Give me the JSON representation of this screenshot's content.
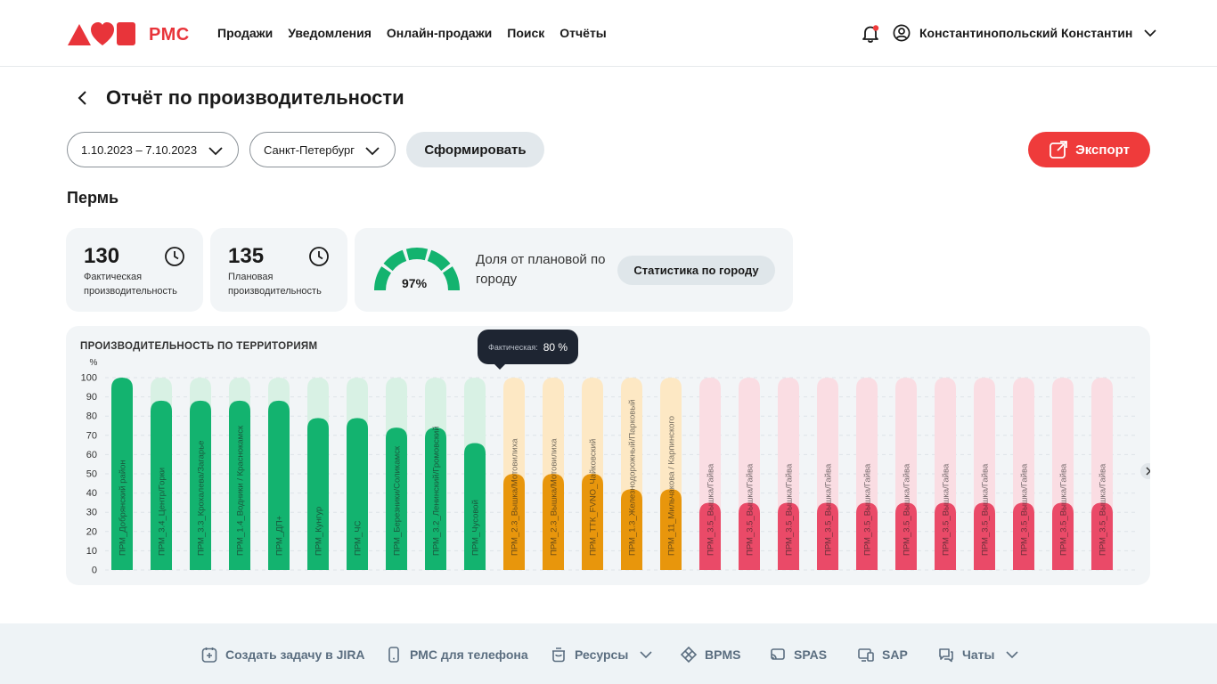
{
  "app": {
    "brand": "РМС"
  },
  "nav": [
    "Продажи",
    "Уведомления",
    "Онлайн-продажи",
    "Поиск",
    "Отчёты"
  ],
  "user": {
    "name": "Константинопольский Константин"
  },
  "page": {
    "title": "Отчёт по производительности"
  },
  "filters": {
    "date_range": "1.10.2023 – 7.10.2023",
    "city": "Санкт-Петербург",
    "submit_label": "Сформировать",
    "export_label": "Экспорт"
  },
  "city_title": "Пермь",
  "kpi": {
    "actual": {
      "value": "130",
      "label": "Фактическая производительность"
    },
    "planned": {
      "value": "135",
      "label": "Плановая производительность"
    },
    "share": {
      "value": "97%",
      "label": "Доля от плановой по городу",
      "button": "Статистика по городу"
    }
  },
  "tooltip": {
    "label": "Фактическая:",
    "value": "80 %"
  },
  "colors": {
    "green": "#13b36f",
    "green_light": "#d8f1e4",
    "orange": "#e8960c",
    "orange_light": "#fde8c4",
    "red": "#ea4a68",
    "red_light": "#fadde3",
    "accent": "#ef3b3b"
  },
  "chart_data": {
    "type": "bar",
    "title": "ПРОИЗВОДИТЕЛЬНОСТЬ ПО ТЕРРИТОРИЯМ",
    "ylabel": "%",
    "ylim": [
      0,
      100
    ],
    "yticks": [
      100,
      90,
      80,
      70,
      60,
      50,
      40,
      30,
      20,
      10,
      0
    ],
    "categories": [
      "ПРМ_Добрянский район",
      "ПРМ_3.4_Центр/Горки",
      "ПРМ_3.3_Крохалева/Загарье",
      "ПРМ_1.4_Водники / Краснокамск",
      "ПРМ_ДП+",
      "ПРМ_Кунгур",
      "ПРМ_ЧС",
      "ПРМ_Березники/Соликамск",
      "ПРМ_3.2_Ленинский/Громовский",
      "ПРМ_Чусовой",
      "ПРМ_2.3_Вышка/Мотовилиха",
      "ПРМ_2.3_Вышка/Мотовилиха",
      "ПРМ_ТТК_FVNO_Чайковский",
      "ПРМ_1.3_Железнодорожный/Парковый",
      "ПРМ_11_Мильчакова / Карпинского",
      "ПРМ_3.5_Вышка/Гайва",
      "ПРМ_3.5_Вышка/Гайва",
      "ПРМ_3.5_Вышка/Гайва",
      "ПРМ_3.5_Вышка/Гайва",
      "ПРМ_3.5_Вышка/Гайва",
      "ПРМ_3.5_Вышка/Гайва",
      "ПРМ_3.5_Вышка/Гайва",
      "ПРМ_3.5_Вышка/Гайва",
      "ПРМ_3.5_Вышка/Гайва",
      "ПРМ_3.5_Вышка/Гайва",
      "ПРМ_3.5_Вышка/Гайва"
    ],
    "values": [
      100,
      88,
      88,
      88,
      88,
      79,
      79,
      74,
      74,
      66,
      50,
      50,
      50,
      42,
      42,
      35,
      35,
      35,
      35,
      35,
      35,
      35,
      35,
      35,
      35,
      35
    ],
    "status": [
      "green",
      "green",
      "green",
      "green",
      "green",
      "green",
      "green",
      "green",
      "green",
      "green",
      "orange",
      "orange",
      "orange",
      "orange",
      "orange",
      "red",
      "red",
      "red",
      "red",
      "red",
      "red",
      "red",
      "red",
      "red",
      "red",
      "red"
    ]
  },
  "footer": [
    {
      "label": "Создать задачу в JIRA",
      "icon": "jira-task-icon"
    },
    {
      "label": "РМС для телефона",
      "icon": "phone-icon"
    },
    {
      "label": "Ресурсы",
      "icon": "resources-icon"
    },
    {
      "label": "BPMS",
      "icon": "bpms-icon"
    },
    {
      "label": "SPAS",
      "icon": "spas-icon"
    },
    {
      "label": "SAP",
      "icon": "sap-icon"
    },
    {
      "label": "Чаты",
      "icon": "chat-icon"
    }
  ]
}
